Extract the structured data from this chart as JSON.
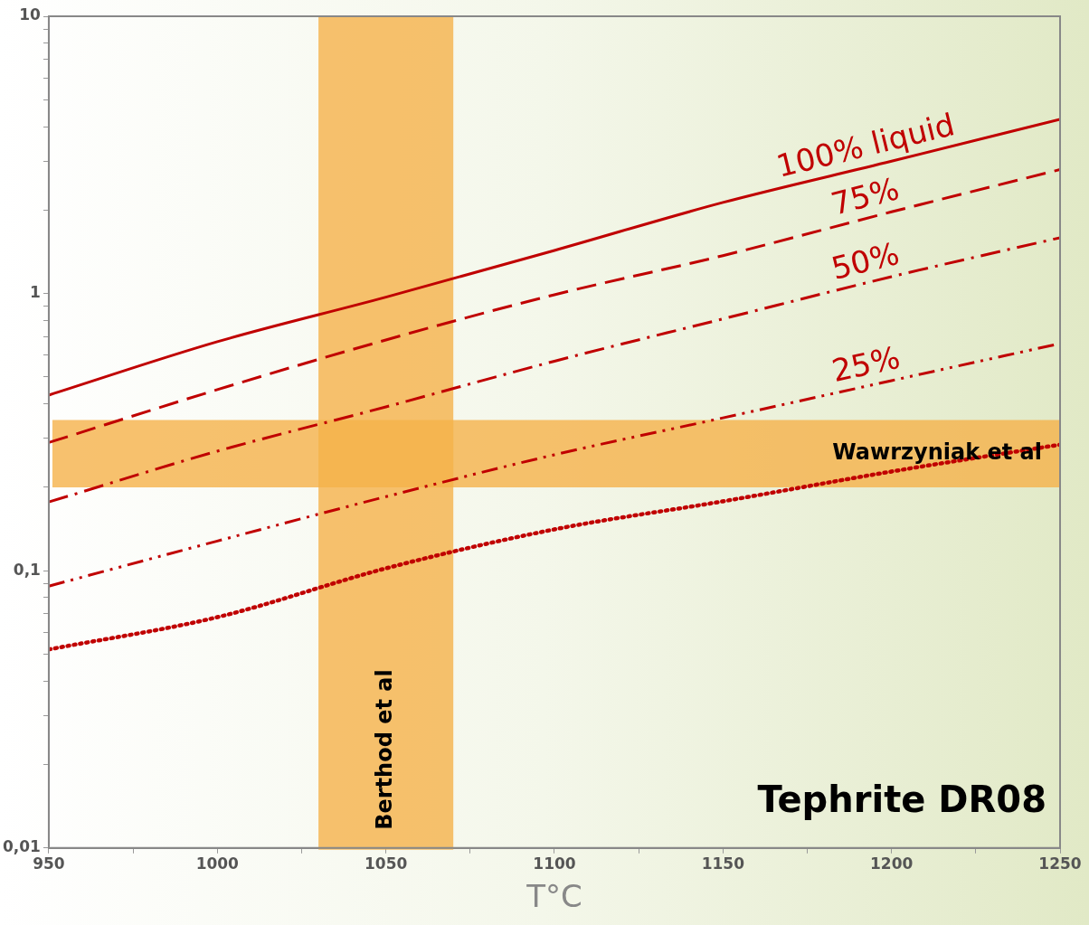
{
  "chart_data": {
    "type": "line",
    "xlabel": "T°C",
    "x": [
      950,
      1000,
      1050,
      1100,
      1150,
      1200,
      1250
    ],
    "series": [
      {
        "name": "100% liquid",
        "color": "#c00000",
        "line_style": "solid",
        "values": [
          0.43,
          0.67,
          0.97,
          1.43,
          2.13,
          3.0,
          4.25
        ]
      },
      {
        "name": "75%",
        "color": "#c00000",
        "line_style": "dashed",
        "values": [
          0.29,
          0.45,
          0.68,
          0.99,
          1.37,
          1.97,
          2.8
        ]
      },
      {
        "name": "50%",
        "color": "#c00000",
        "line_style": "dashdot",
        "values": [
          0.177,
          0.27,
          0.39,
          0.57,
          0.81,
          1.15,
          1.59
        ]
      },
      {
        "name": "25%",
        "color": "#c00000",
        "line_style": "dashdotdot",
        "values": [
          0.088,
          0.128,
          0.185,
          0.262,
          0.356,
          0.485,
          0.66
        ]
      },
      {
        "color": "#c00000",
        "line_style": "dotted",
        "values": [
          0.052,
          0.068,
          0.102,
          0.141,
          0.178,
          0.228,
          0.285
        ]
      }
    ],
    "log": "y",
    "xlim": [
      950,
      1250
    ],
    "ylim": [
      0.01,
      10
    ],
    "xticks": [
      950,
      {
        "value": 975,
        "label": null
      },
      1000,
      {
        "value": 1025,
        "label": null
      },
      1050,
      {
        "value": 1075,
        "label": null
      },
      1100,
      {
        "value": 1125,
        "label": null
      },
      1150,
      {
        "value": 1175,
        "label": null
      },
      1200,
      {
        "value": 1225,
        "label": null
      },
      1250
    ],
    "yticks": [
      {
        "value": 0.01,
        "label": "0,01"
      },
      {
        "value": 0.02,
        "label": null
      },
      {
        "value": 0.03,
        "label": null
      },
      {
        "value": 0.04,
        "label": null
      },
      {
        "value": 0.05,
        "label": null
      },
      {
        "value": 0.06,
        "label": null
      },
      {
        "value": 0.07,
        "label": null
      },
      {
        "value": 0.08,
        "label": null
      },
      {
        "value": 0.09,
        "label": null
      },
      {
        "value": 0.1,
        "label": "0,1"
      },
      {
        "value": 0.2,
        "label": null
      },
      {
        "value": 0.3,
        "label": null
      },
      {
        "value": 0.4,
        "label": null
      },
      {
        "value": 0.5,
        "label": null
      },
      {
        "value": 0.6,
        "label": null
      },
      {
        "value": 0.7,
        "label": null
      },
      {
        "value": 0.8,
        "label": null
      },
      {
        "value": 0.9,
        "label": null
      },
      1,
      {
        "value": 2,
        "label": null
      },
      {
        "value": 3,
        "label": null
      },
      {
        "value": 4,
        "label": null
      },
      {
        "value": 5,
        "label": null
      },
      {
        "value": 6,
        "label": null
      },
      {
        "value": 7,
        "label": null
      },
      {
        "value": 8,
        "label": null
      },
      {
        "value": 9,
        "label": null
      },
      10
    ],
    "bands": [
      {
        "axis": "y",
        "from": 0.2,
        "to": 0.35,
        "label": "Wawrzyniak et al",
        "color": "#f5b24a"
      },
      {
        "axis": "x",
        "from": 1030,
        "to": 1070,
        "label": "Berthod et al",
        "color": "#f5b24a"
      }
    ],
    "annotations": [
      "Tephrite DR08"
    ],
    "grid": false,
    "legend": false,
    "marker": "none"
  }
}
